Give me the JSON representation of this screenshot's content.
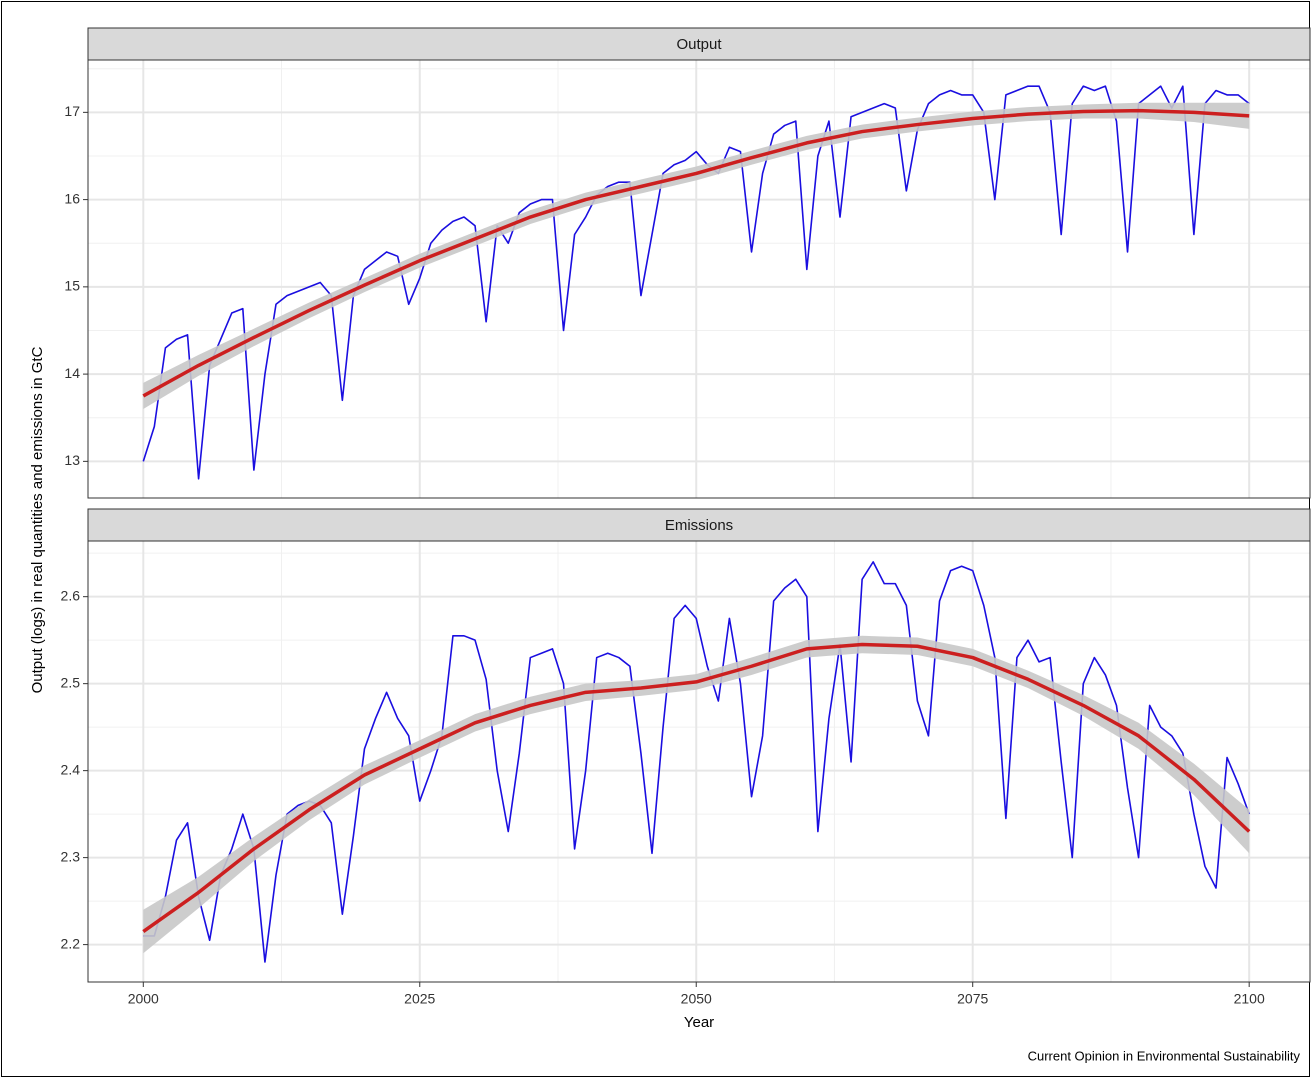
{
  "ylabel": "Output (logs) in real quantities and emissions in GtC",
  "xlabel": "Year",
  "source": "Current Opinion in Environmental Sustainability",
  "chart_data": [
    {
      "type": "line",
      "title": "Output",
      "xlim": [
        1995,
        2105.5
      ],
      "xticks": [
        2000,
        2025,
        2050,
        2075,
        2100
      ],
      "xminorticks": [
        2012.5,
        2037.5,
        2062.5,
        2087.5
      ],
      "ylim": [
        12.58,
        17.6
      ],
      "yticks": [
        13,
        14,
        15,
        16,
        17
      ],
      "yminorticks": [
        13.5,
        14.5,
        15.5,
        16.5,
        17.5
      ],
      "grid": true,
      "x": [
        2000,
        2001,
        2002,
        2003,
        2004,
        2005,
        2006,
        2007,
        2008,
        2009,
        2010,
        2011,
        2012,
        2013,
        2014,
        2015,
        2016,
        2017,
        2018,
        2019,
        2020,
        2021,
        2022,
        2023,
        2024,
        2025,
        2026,
        2027,
        2028,
        2029,
        2030,
        2031,
        2032,
        2033,
        2034,
        2035,
        2036,
        2037,
        2038,
        2039,
        2040,
        2041,
        2042,
        2043,
        2044,
        2045,
        2046,
        2047,
        2048,
        2049,
        2050,
        2051,
        2052,
        2053,
        2054,
        2055,
        2056,
        2057,
        2058,
        2059,
        2060,
        2061,
        2062,
        2063,
        2064,
        2065,
        2066,
        2067,
        2068,
        2069,
        2070,
        2071,
        2072,
        2073,
        2074,
        2075,
        2076,
        2077,
        2078,
        2079,
        2080,
        2081,
        2082,
        2083,
        2084,
        2085,
        2086,
        2087,
        2088,
        2089,
        2090,
        2091,
        2092,
        2093,
        2094,
        2095,
        2096,
        2097,
        2098,
        2099,
        2100
      ],
      "series": [
        {
          "color": "#1a0ee0",
          "values": [
            13.0,
            13.4,
            14.3,
            14.4,
            14.45,
            12.8,
            14.1,
            14.4,
            14.7,
            14.75,
            12.9,
            14.0,
            14.8,
            14.9,
            14.95,
            15.0,
            15.05,
            14.9,
            13.7,
            14.9,
            15.2,
            15.3,
            15.4,
            15.35,
            14.8,
            15.1,
            15.5,
            15.65,
            15.75,
            15.8,
            15.7,
            14.6,
            15.7,
            15.5,
            15.85,
            15.95,
            16.0,
            16.0,
            14.5,
            15.6,
            15.8,
            16.05,
            16.15,
            16.2,
            16.2,
            14.9,
            15.6,
            16.3,
            16.4,
            16.45,
            16.55,
            16.4,
            16.3,
            16.6,
            16.55,
            15.4,
            16.3,
            16.75,
            16.85,
            16.9,
            15.2,
            16.5,
            16.9,
            15.8,
            16.95,
            17.0,
            17.05,
            17.1,
            17.05,
            16.1,
            16.8,
            17.1,
            17.2,
            17.25,
            17.2,
            17.2,
            17.0,
            16.0,
            17.2,
            17.25,
            17.3,
            17.3,
            17.0,
            15.6,
            17.1,
            17.3,
            17.25,
            17.3,
            16.9,
            15.4,
            17.1,
            17.2,
            17.3,
            17.05,
            17.3,
            15.6,
            17.1,
            17.25,
            17.2,
            17.2,
            17.1
          ]
        },
        {
          "color": "#cc1f1f",
          "band_color": "#c8c8c8",
          "x": [
            2000,
            2005,
            2010,
            2015,
            2020,
            2025,
            2030,
            2035,
            2040,
            2045,
            2050,
            2055,
            2060,
            2065,
            2070,
            2075,
            2080,
            2085,
            2090,
            2095,
            2100
          ],
          "values": [
            13.75,
            14.1,
            14.42,
            14.73,
            15.02,
            15.3,
            15.55,
            15.8,
            16.0,
            16.15,
            16.3,
            16.48,
            16.65,
            16.78,
            16.86,
            16.93,
            16.98,
            17.01,
            17.02,
            17.0,
            16.96
          ],
          "lower": [
            13.6,
            13.98,
            14.32,
            14.64,
            14.94,
            15.22,
            15.47,
            15.72,
            15.92,
            16.07,
            16.22,
            16.4,
            16.57,
            16.7,
            16.78,
            16.85,
            16.9,
            16.93,
            16.93,
            16.89,
            16.81
          ],
          "upper": [
            13.9,
            14.22,
            14.52,
            14.82,
            15.1,
            15.38,
            15.63,
            15.88,
            16.08,
            16.23,
            16.38,
            16.56,
            16.73,
            16.86,
            16.94,
            17.01,
            17.06,
            17.09,
            17.11,
            17.11,
            17.11
          ]
        }
      ]
    },
    {
      "type": "line",
      "title": "Emissions",
      "xlim": [
        1995,
        2105.5
      ],
      "xticks": [
        2000,
        2025,
        2050,
        2075,
        2100
      ],
      "xminorticks": [
        2012.5,
        2037.5,
        2062.5,
        2087.5
      ],
      "ylim": [
        2.157,
        2.664
      ],
      "yticks": [
        2.2,
        2.3,
        2.4,
        2.5,
        2.6
      ],
      "yminorticks": [
        2.25,
        2.35,
        2.45,
        2.55,
        2.65
      ],
      "grid": true,
      "x": [
        2000,
        2001,
        2002,
        2003,
        2004,
        2005,
        2006,
        2007,
        2008,
        2009,
        2010,
        2011,
        2012,
        2013,
        2014,
        2015,
        2016,
        2017,
        2018,
        2019,
        2020,
        2021,
        2022,
        2023,
        2024,
        2025,
        2026,
        2027,
        2028,
        2029,
        2030,
        2031,
        2032,
        2033,
        2034,
        2035,
        2036,
        2037,
        2038,
        2039,
        2040,
        2041,
        2042,
        2043,
        2044,
        2045,
        2046,
        2047,
        2048,
        2049,
        2050,
        2051,
        2052,
        2053,
        2054,
        2055,
        2056,
        2057,
        2058,
        2059,
        2060,
        2061,
        2062,
        2063,
        2064,
        2065,
        2066,
        2067,
        2068,
        2069,
        2070,
        2071,
        2072,
        2073,
        2074,
        2075,
        2076,
        2077,
        2078,
        2079,
        2080,
        2081,
        2082,
        2083,
        2084,
        2085,
        2086,
        2087,
        2088,
        2089,
        2090,
        2091,
        2092,
        2093,
        2094,
        2095,
        2096,
        2097,
        2098,
        2099,
        2100
      ],
      "series": [
        {
          "color": "#1a0ee0",
          "values": [
            2.21,
            2.21,
            2.255,
            2.32,
            2.34,
            2.255,
            2.205,
            2.28,
            2.31,
            2.35,
            2.31,
            2.18,
            2.28,
            2.35,
            2.36,
            2.365,
            2.36,
            2.34,
            2.235,
            2.325,
            2.425,
            2.46,
            2.49,
            2.46,
            2.44,
            2.365,
            2.4,
            2.44,
            2.555,
            2.555,
            2.55,
            2.505,
            2.4,
            2.33,
            2.42,
            2.53,
            2.535,
            2.54,
            2.5,
            2.31,
            2.4,
            2.53,
            2.535,
            2.53,
            2.52,
            2.42,
            2.305,
            2.45,
            2.575,
            2.59,
            2.575,
            2.52,
            2.48,
            2.575,
            2.5,
            2.37,
            2.44,
            2.595,
            2.61,
            2.62,
            2.6,
            2.33,
            2.46,
            2.545,
            2.41,
            2.62,
            2.64,
            2.615,
            2.615,
            2.59,
            2.48,
            2.44,
            2.595,
            2.63,
            2.635,
            2.63,
            2.59,
            2.53,
            2.345,
            2.53,
            2.55,
            2.525,
            2.53,
            2.41,
            2.3,
            2.5,
            2.53,
            2.51,
            2.475,
            2.38,
            2.3,
            2.475,
            2.45,
            2.44,
            2.42,
            2.35,
            2.29,
            2.265,
            2.415,
            2.385,
            2.35
          ]
        },
        {
          "color": "#cc1f1f",
          "band_color": "#c8c8c8",
          "x": [
            2000,
            2005,
            2010,
            2015,
            2020,
            2025,
            2030,
            2035,
            2040,
            2045,
            2050,
            2055,
            2060,
            2065,
            2070,
            2075,
            2080,
            2085,
            2090,
            2095,
            2100
          ],
          "values": [
            2.215,
            2.26,
            2.31,
            2.355,
            2.395,
            2.425,
            2.455,
            2.475,
            2.49,
            2.495,
            2.502,
            2.52,
            2.54,
            2.545,
            2.543,
            2.53,
            2.505,
            2.475,
            2.44,
            2.39,
            2.33
          ],
          "lower": [
            2.19,
            2.242,
            2.296,
            2.343,
            2.384,
            2.415,
            2.445,
            2.465,
            2.48,
            2.486,
            2.493,
            2.51,
            2.53,
            2.535,
            2.533,
            2.52,
            2.495,
            2.463,
            2.425,
            2.372,
            2.305
          ],
          "upper": [
            2.24,
            2.278,
            2.324,
            2.367,
            2.406,
            2.435,
            2.465,
            2.485,
            2.5,
            2.504,
            2.511,
            2.53,
            2.55,
            2.555,
            2.553,
            2.54,
            2.515,
            2.487,
            2.455,
            2.408,
            2.355
          ]
        }
      ]
    }
  ]
}
